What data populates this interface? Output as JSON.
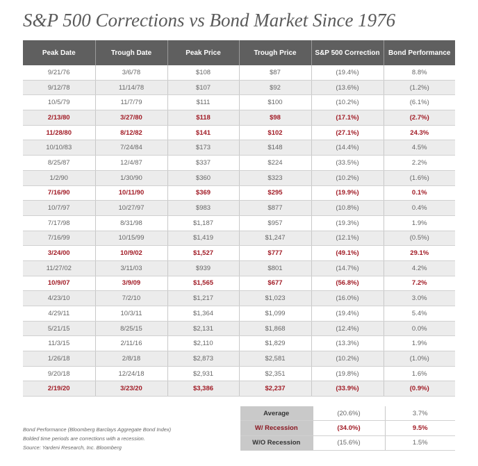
{
  "title": "S&P 500 Corrections vs Bond Market Since 1976",
  "columns": [
    "Peak Date",
    "Trough Date",
    "Peak Price",
    "Trough Price",
    "S&P 500 Correction",
    "Bond Performance"
  ],
  "rows": [
    {
      "peak_date": "9/21/76",
      "trough_date": "3/6/78",
      "peak_price": "$108",
      "trough_price": "$87",
      "correction": "(19.4%)",
      "bond": "8.8%",
      "recession": false
    },
    {
      "peak_date": "9/12/78",
      "trough_date": "11/14/78",
      "peak_price": "$107",
      "trough_price": "$92",
      "correction": "(13.6%)",
      "bond": "(1.2%)",
      "recession": false
    },
    {
      "peak_date": "10/5/79",
      "trough_date": "11/7/79",
      "peak_price": "$111",
      "trough_price": "$100",
      "correction": "(10.2%)",
      "bond": "(6.1%)",
      "recession": false
    },
    {
      "peak_date": "2/13/80",
      "trough_date": "3/27/80",
      "peak_price": "$118",
      "trough_price": "$98",
      "correction": "(17.1%)",
      "bond": "(2.7%)",
      "recession": true
    },
    {
      "peak_date": "11/28/80",
      "trough_date": "8/12/82",
      "peak_price": "$141",
      "trough_price": "$102",
      "correction": "(27.1%)",
      "bond": "24.3%",
      "recession": true
    },
    {
      "peak_date": "10/10/83",
      "trough_date": "7/24/84",
      "peak_price": "$173",
      "trough_price": "$148",
      "correction": "(14.4%)",
      "bond": "4.5%",
      "recession": false
    },
    {
      "peak_date": "8/25/87",
      "trough_date": "12/4/87",
      "peak_price": "$337",
      "trough_price": "$224",
      "correction": "(33.5%)",
      "bond": "2.2%",
      "recession": false
    },
    {
      "peak_date": "1/2/90",
      "trough_date": "1/30/90",
      "peak_price": "$360",
      "trough_price": "$323",
      "correction": "(10.2%)",
      "bond": "(1.6%)",
      "recession": false
    },
    {
      "peak_date": "7/16/90",
      "trough_date": "10/11/90",
      "peak_price": "$369",
      "trough_price": "$295",
      "correction": "(19.9%)",
      "bond": "0.1%",
      "recession": true
    },
    {
      "peak_date": "10/7/97",
      "trough_date": "10/27/97",
      "peak_price": "$983",
      "trough_price": "$877",
      "correction": "(10.8%)",
      "bond": "0.4%",
      "recession": false
    },
    {
      "peak_date": "7/17/98",
      "trough_date": "8/31/98",
      "peak_price": "$1,187",
      "trough_price": "$957",
      "correction": "(19.3%)",
      "bond": "1.9%",
      "recession": false
    },
    {
      "peak_date": "7/16/99",
      "trough_date": "10/15/99",
      "peak_price": "$1,419",
      "trough_price": "$1,247",
      "correction": "(12.1%)",
      "bond": "(0.5%)",
      "recession": false
    },
    {
      "peak_date": "3/24/00",
      "trough_date": "10/9/02",
      "peak_price": "$1,527",
      "trough_price": "$777",
      "correction": "(49.1%)",
      "bond": "29.1%",
      "recession": true
    },
    {
      "peak_date": "11/27/02",
      "trough_date": "3/11/03",
      "peak_price": "$939",
      "trough_price": "$801",
      "correction": "(14.7%)",
      "bond": "4.2%",
      "recession": false
    },
    {
      "peak_date": "10/9/07",
      "trough_date": "3/9/09",
      "peak_price": "$1,565",
      "trough_price": "$677",
      "correction": "(56.8%)",
      "bond": "7.2%",
      "recession": true
    },
    {
      "peak_date": "4/23/10",
      "trough_date": "7/2/10",
      "peak_price": "$1,217",
      "trough_price": "$1,023",
      "correction": "(16.0%)",
      "bond": "3.0%",
      "recession": false
    },
    {
      "peak_date": "4/29/11",
      "trough_date": "10/3/11",
      "peak_price": "$1,364",
      "trough_price": "$1,099",
      "correction": "(19.4%)",
      "bond": "5.4%",
      "recession": false
    },
    {
      "peak_date": "5/21/15",
      "trough_date": "8/25/15",
      "peak_price": "$2,131",
      "trough_price": "$1,868",
      "correction": "(12.4%)",
      "bond": "0.0%",
      "recession": false
    },
    {
      "peak_date": "11/3/15",
      "trough_date": "2/11/16",
      "peak_price": "$2,110",
      "trough_price": "$1,829",
      "correction": "(13.3%)",
      "bond": "1.9%",
      "recession": false
    },
    {
      "peak_date": "1/26/18",
      "trough_date": "2/8/18",
      "peak_price": "$2,873",
      "trough_price": "$2,581",
      "correction": "(10.2%)",
      "bond": "(1.0%)",
      "recession": false
    },
    {
      "peak_date": "9/20/18",
      "trough_date": "12/24/18",
      "peak_price": "$2,931",
      "trough_price": "$2,351",
      "correction": "(19.8%)",
      "bond": "1.6%",
      "recession": false
    },
    {
      "peak_date": "2/19/20",
      "trough_date": "3/23/20",
      "peak_price": "$3,386",
      "trough_price": "$2,237",
      "correction": "(33.9%)",
      "bond": "(0.9%)",
      "recession": true
    }
  ],
  "summary": [
    {
      "label": "Average",
      "correction": "(20.6%)",
      "bond": "3.7%",
      "recession": false
    },
    {
      "label": "W/ Recession",
      "correction": "(34.0%)",
      "bond": "9.5%",
      "recession": true
    },
    {
      "label": "W/O Recession",
      "correction": "(15.6%)",
      "bond": "1.5%",
      "recession": false
    }
  ],
  "notes": [
    "Bond Performance (Bloomberg Barclays Aggregate Bond Index)",
    "Bolded time periods are corrections with a recession.",
    "Source: Yardeni Research, Inc. Bloomberg"
  ],
  "colors": {
    "header_bg": "#5f5f5f",
    "recession_text": "#a11b25",
    "alt_row_bg": "#ececec",
    "summary_label_bg": "#c9c9c9"
  }
}
